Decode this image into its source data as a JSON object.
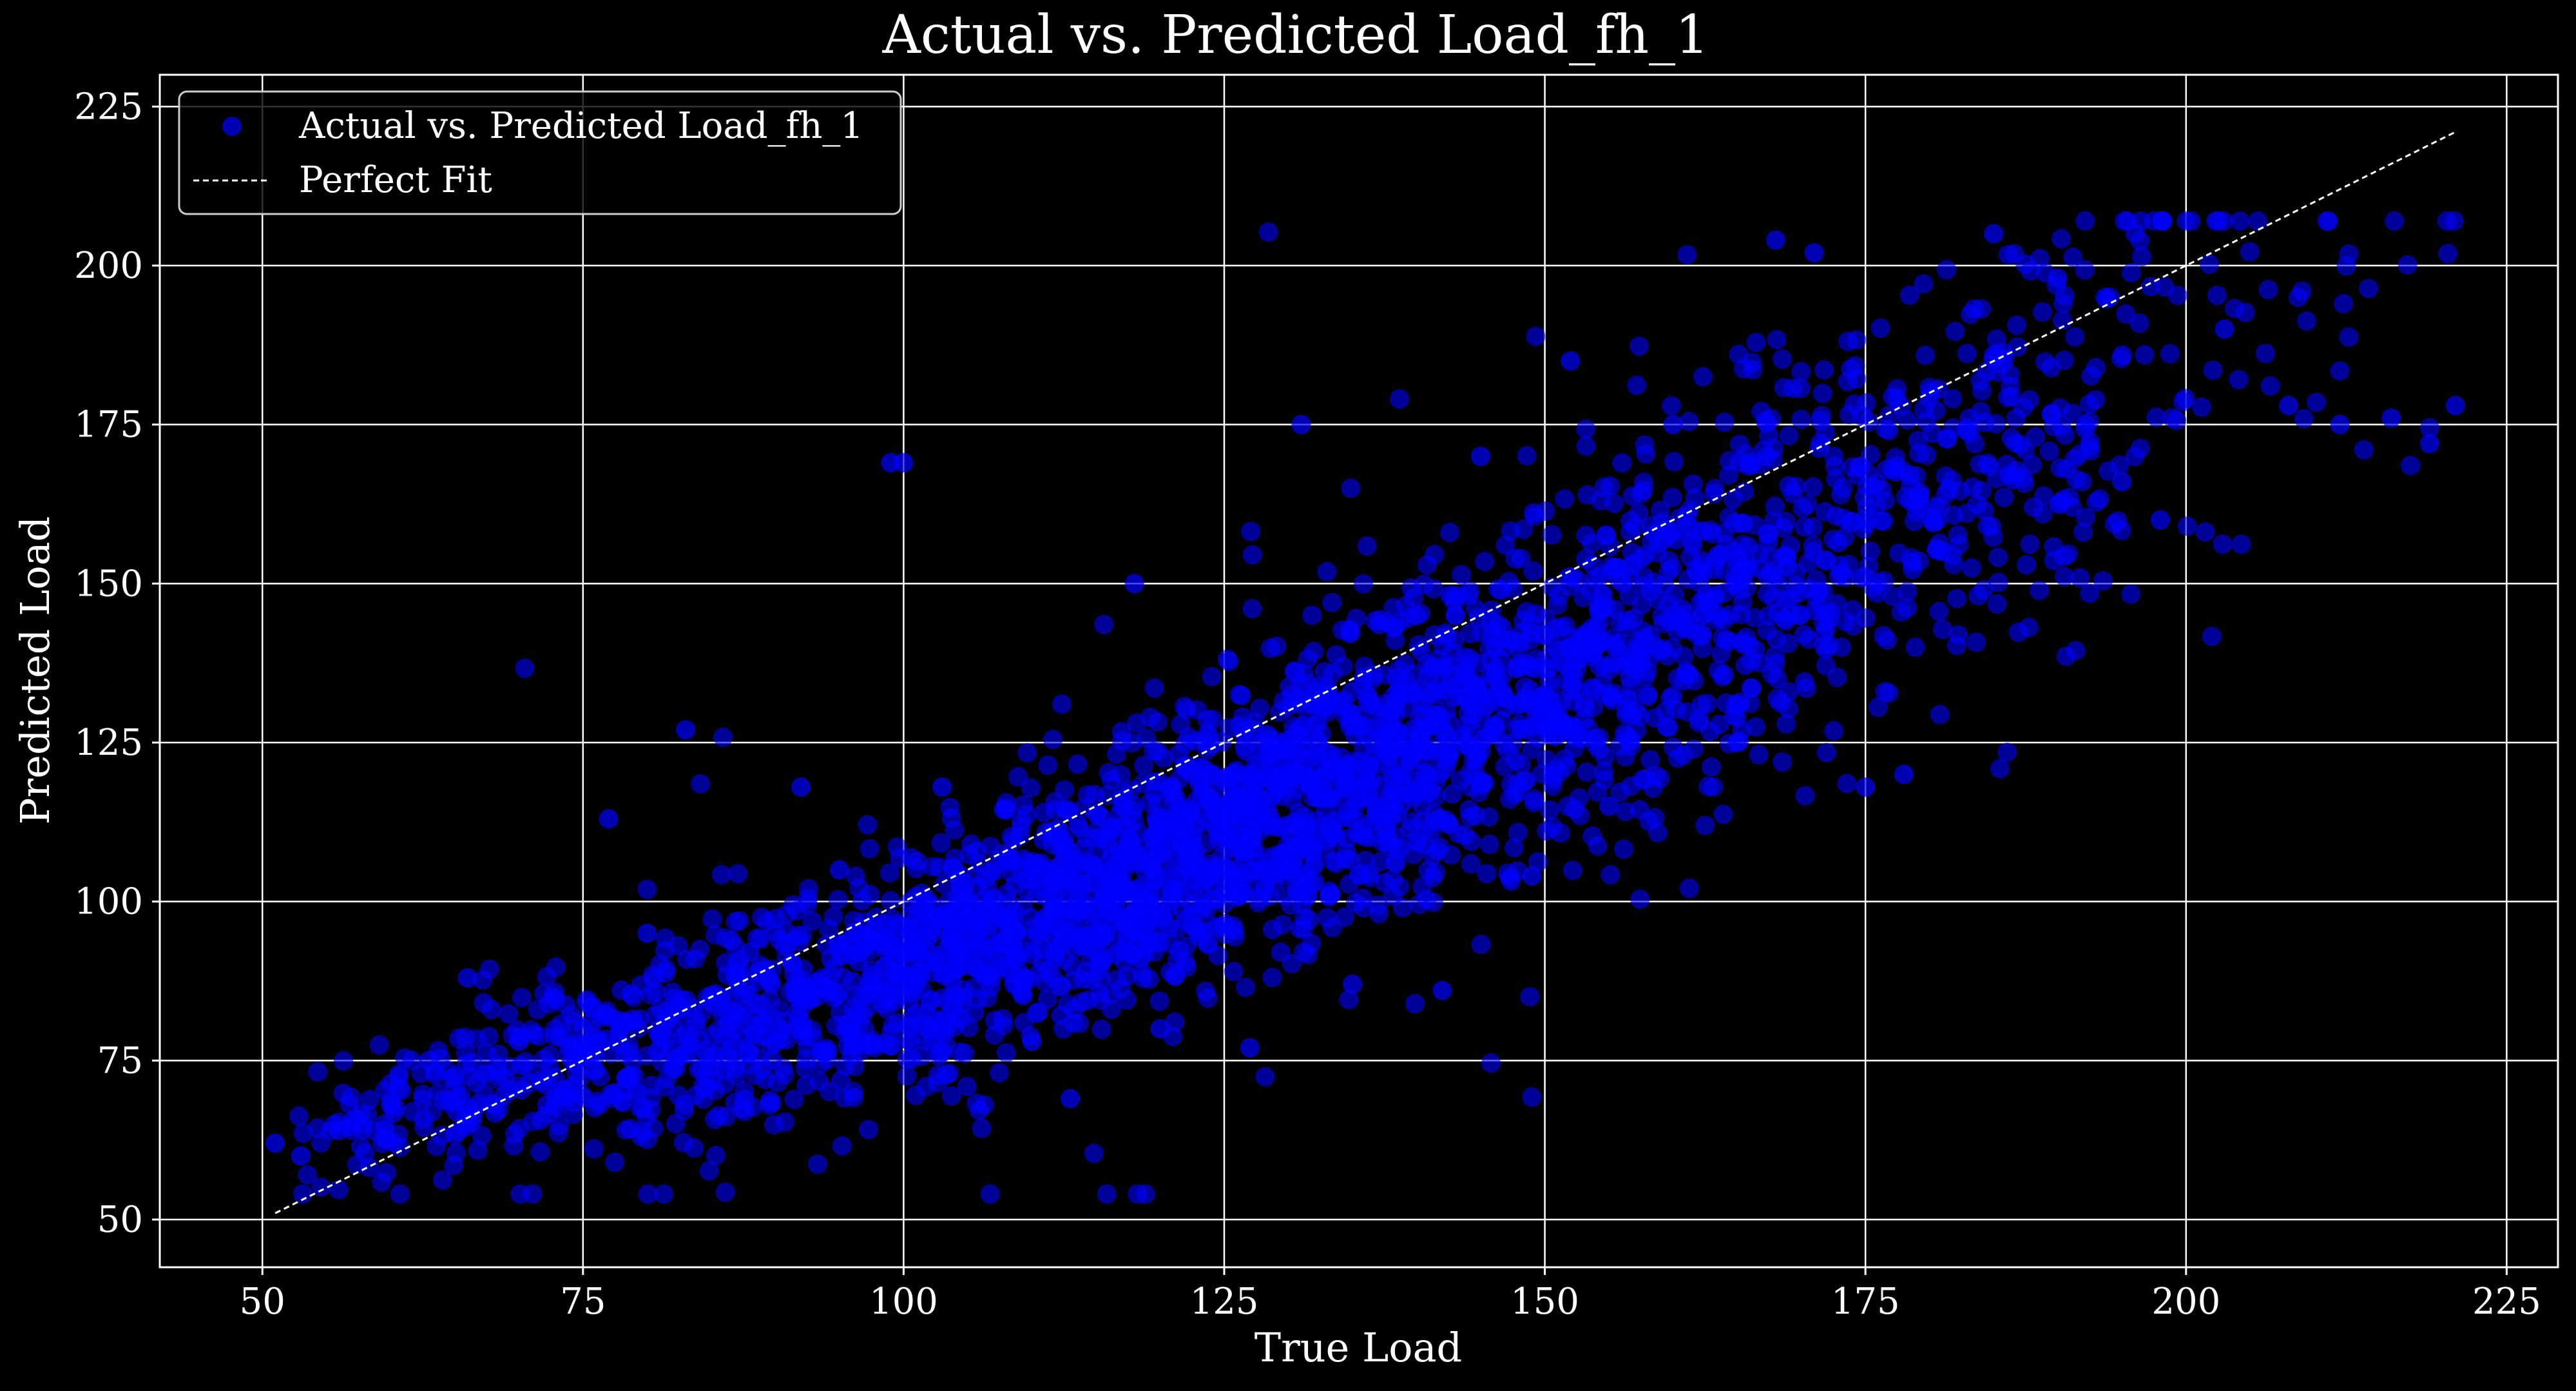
{
  "chart_data": {
    "type": "scatter",
    "title": "Actual vs. Predicted Load_fh_1",
    "xlabel": "True Load",
    "ylabel": "Predicted Load",
    "xlim": [
      42,
      229
    ],
    "ylim": [
      42.5,
      230
    ],
    "xticks": [
      50,
      75,
      100,
      125,
      150,
      175,
      200,
      225
    ],
    "yticks": [
      50,
      75,
      100,
      125,
      150,
      175,
      200,
      225
    ],
    "xtick_labels": [
      "50",
      "75",
      "100",
      "125",
      "150",
      "175",
      "200",
      "225"
    ],
    "ytick_labels": [
      "50",
      "75",
      "100",
      "125",
      "150",
      "175",
      "200",
      "225"
    ],
    "grid": true,
    "legend": {
      "position": "upper-left",
      "entries": [
        "Actual vs. Predicted Load_fh_1",
        "Perfect Fit"
      ]
    },
    "series": [
      {
        "name": "Actual vs. Predicted Load_fh_1",
        "kind": "scatter",
        "color": "#0000ff",
        "x_range_observed": [
          51,
          221
        ],
        "y_range_observed": [
          54,
          207
        ],
        "sample_points": [
          [
            51,
            62
          ],
          [
            53,
            60
          ],
          [
            56,
            64
          ],
          [
            60,
            68
          ],
          [
            63,
            75
          ],
          [
            66,
            88
          ],
          [
            70,
            78
          ],
          [
            75,
            80
          ],
          [
            77,
            113
          ],
          [
            80,
            95
          ],
          [
            83,
            127
          ],
          [
            88,
            92
          ],
          [
            92,
            118
          ],
          [
            95,
            105
          ],
          [
            99,
            169
          ],
          [
            100,
            169
          ],
          [
            103,
            118
          ],
          [
            105,
            96
          ],
          [
            110,
            78
          ],
          [
            113,
            69
          ],
          [
            118,
            150
          ],
          [
            120,
            80
          ],
          [
            124,
            120
          ],
          [
            127,
            77
          ],
          [
            131,
            175
          ],
          [
            135,
            87
          ],
          [
            140,
            145
          ],
          [
            142,
            86
          ],
          [
            145,
            170
          ],
          [
            149,
            104
          ],
          [
            152,
            185
          ],
          [
            155,
            115
          ],
          [
            160,
            175
          ],
          [
            165,
            125
          ],
          [
            168,
            204
          ],
          [
            171,
            202
          ],
          [
            175,
            118
          ],
          [
            178,
            120
          ],
          [
            181,
            155
          ],
          [
            185,
            205
          ],
          [
            190,
            198
          ],
          [
            195,
            166
          ],
          [
            198,
            160
          ],
          [
            203,
            190
          ],
          [
            208,
            178
          ],
          [
            212,
            175
          ],
          [
            216,
            176
          ],
          [
            219,
            172
          ],
          [
            221,
            178
          ]
        ]
      },
      {
        "name": "Perfect Fit",
        "kind": "line",
        "style": "dashed",
        "color": "#ffffff",
        "points": [
          [
            51,
            51
          ],
          [
            221,
            221
          ]
        ]
      }
    ]
  }
}
